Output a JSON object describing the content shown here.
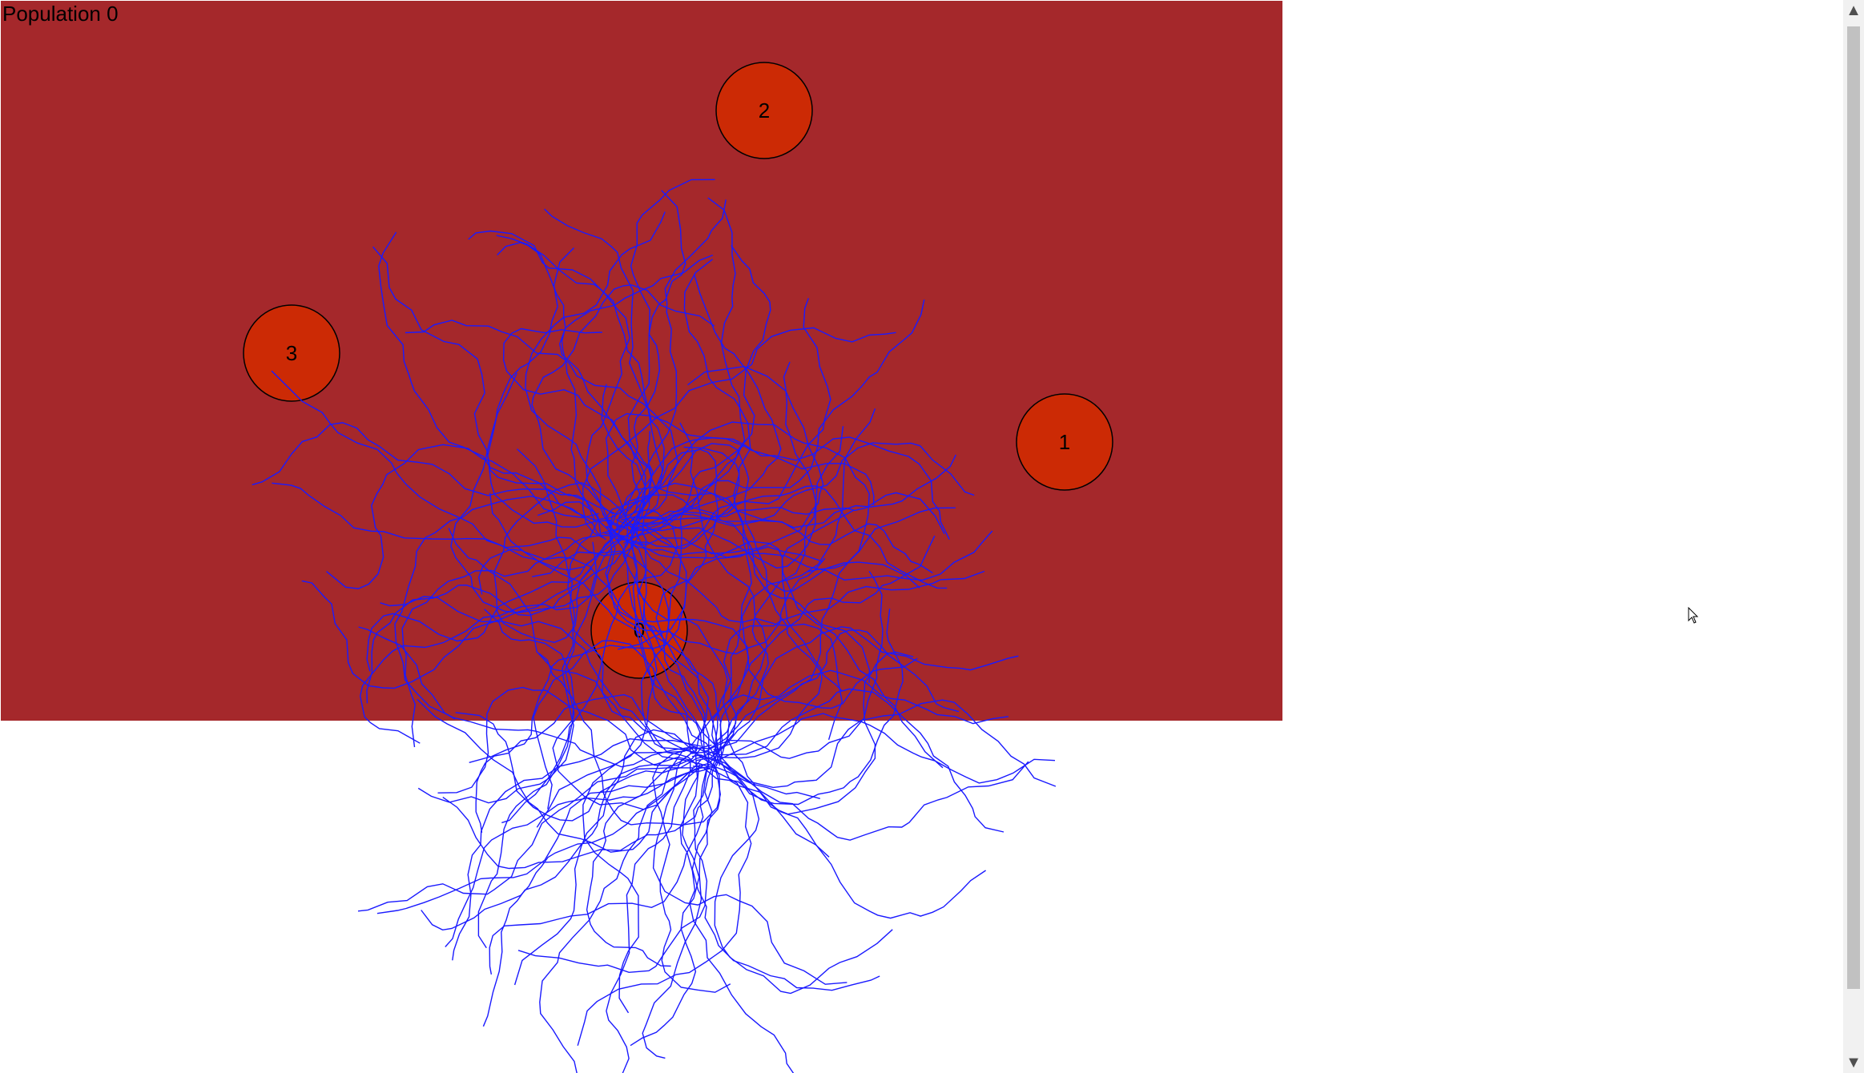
{
  "population": {
    "label": "Population 0"
  },
  "field": {
    "color": "#a5282b"
  },
  "targets": {
    "fill": "#cc2a05",
    "stroke": "#000000",
    "items": [
      {
        "label": "0"
      },
      {
        "label": "1"
      },
      {
        "label": "2"
      },
      {
        "label": "3"
      }
    ]
  },
  "trails": {
    "color": "#1a1aff"
  },
  "icons": {
    "scroll_up": "chevron-up-icon",
    "scroll_down": "chevron-down-icon",
    "cursor": "mouse-pointer-icon"
  }
}
